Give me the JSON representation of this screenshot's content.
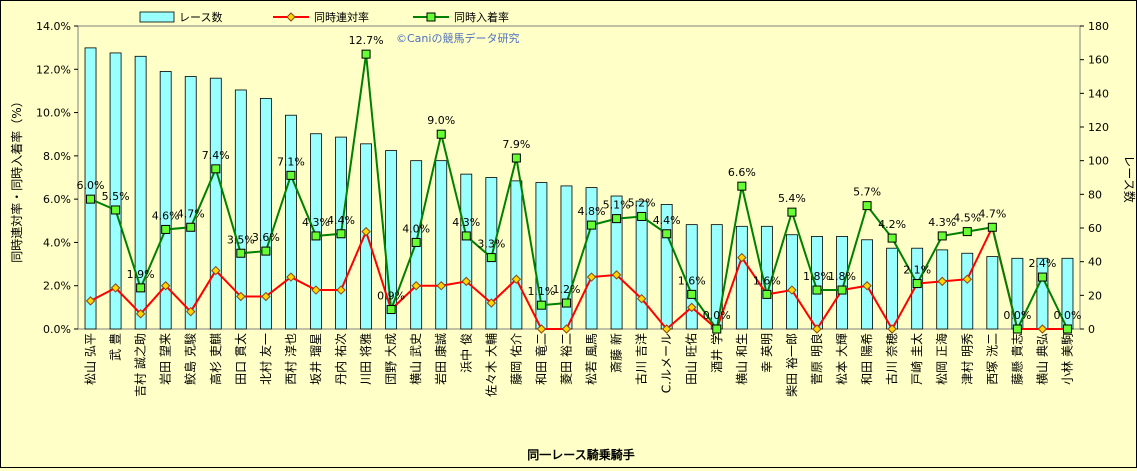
{
  "chart_data": {
    "type": "bar",
    "xlabel": "同一レース騎乗騎手",
    "ylabel_left": "同時連対率・同時入着率（%）",
    "ylabel_right": "レース数",
    "watermark": "©Caniの競馬データ研究",
    "y_left": {
      "min": 0,
      "max": 14,
      "ticks": [
        "0.0%",
        "2.0%",
        "4.0%",
        "6.0%",
        "8.0%",
        "10.0%",
        "12.0%",
        "14.0%"
      ]
    },
    "y_right": {
      "min": 0,
      "max": 180,
      "ticks": [
        "0",
        "20",
        "40",
        "60",
        "80",
        "100",
        "120",
        "140",
        "160",
        "180"
      ]
    },
    "grid": false,
    "legend_position": "top",
    "categories": [
      "松山 弘平",
      "武 豊",
      "吉村 誠之助",
      "岩田 望来",
      "鮫島 克駿",
      "高杉 吏麒",
      "田口 貫太",
      "北村 友一",
      "西村 淳也",
      "坂井 瑠星",
      "丹内 祐次",
      "川田 将雅",
      "団野 大成",
      "横山 武史",
      "岩田 康誠",
      "浜中 俊",
      "佐々木 大輔",
      "藤岡 佑介",
      "和田 竜二",
      "菱田 裕二",
      "松若 風馬",
      "斎藤 新",
      "古川 吉洋",
      "C.ルメール",
      "田山 旺佑",
      "酒井 学",
      "横山 和生",
      "幸 英明",
      "柴田 裕一郎",
      "菅原 明良",
      "松本 大輝",
      "和田 陽希",
      "古川 奈穂",
      "戸崎 圭太",
      "松岡 正海",
      "津村 明秀",
      "西塚 洸二",
      "藤懸 貴志",
      "横山 典弘",
      "小林 美駒"
    ],
    "series": [
      {
        "name": "レース数",
        "type": "bar",
        "axis": "right",
        "color": "#99ffff",
        "values": [
          167,
          164,
          162,
          153,
          150,
          149,
          142,
          137,
          127,
          116,
          114,
          110,
          106,
          100,
          100,
          92,
          90,
          88,
          87,
          85,
          84,
          79,
          76,
          74,
          62,
          62,
          61,
          61,
          56,
          55,
          55,
          53,
          48,
          48,
          47,
          45,
          43,
          42,
          42,
          42
        ]
      },
      {
        "name": "同時連対率",
        "type": "line",
        "axis": "left",
        "color": "#ff0000",
        "values": [
          1.3,
          1.9,
          0.7,
          2.0,
          0.8,
          2.7,
          1.5,
          1.5,
          2.4,
          1.8,
          1.8,
          4.5,
          0.9,
          2.0,
          2.0,
          2.2,
          1.2,
          2.3,
          0.0,
          0.0,
          2.4,
          2.5,
          1.4,
          0.0,
          1.0,
          0.0,
          3.3,
          1.6,
          1.8,
          0.0,
          1.8,
          2.0,
          0.0,
          2.1,
          2.2,
          2.3,
          4.7,
          0.0,
          0.0,
          0.0
        ]
      },
      {
        "name": "同時入着率",
        "type": "line",
        "axis": "left",
        "color": "#008000",
        "values": [
          6.0,
          5.5,
          1.9,
          4.6,
          4.7,
          7.4,
          3.5,
          3.6,
          7.1,
          4.3,
          4.4,
          12.7,
          0.9,
          4.0,
          9.0,
          4.3,
          3.3,
          7.9,
          1.1,
          1.2,
          4.8,
          5.1,
          5.2,
          4.4,
          1.6,
          0.0,
          6.6,
          1.6,
          5.4,
          1.8,
          1.8,
          5.7,
          4.2,
          2.1,
          4.3,
          4.5,
          4.7,
          0.0,
          2.4,
          0.0
        ],
        "labels": [
          "6.0%",
          "5.5%",
          "1.9%",
          "4.6%",
          "4.7%",
          "7.4%",
          "3.5%",
          "3.6%",
          "7.1%",
          "4.3%",
          "4.4%",
          "12.7%",
          "0.9%",
          "4.0%",
          "9.0%",
          "4.3%",
          "3.3%",
          "7.9%",
          "1.1%",
          "1.2%",
          "4.8%",
          "5.1%",
          "5.2%",
          "4.4%",
          "1.6%",
          "0.0%",
          "6.6%",
          "1.6%",
          "5.4%",
          "1.8%",
          "1.8%",
          "5.7%",
          "4.2%",
          "2.1%",
          "4.3%",
          "4.5%",
          "4.7%",
          "0.0%",
          "2.4%",
          "0.0%"
        ]
      }
    ]
  }
}
